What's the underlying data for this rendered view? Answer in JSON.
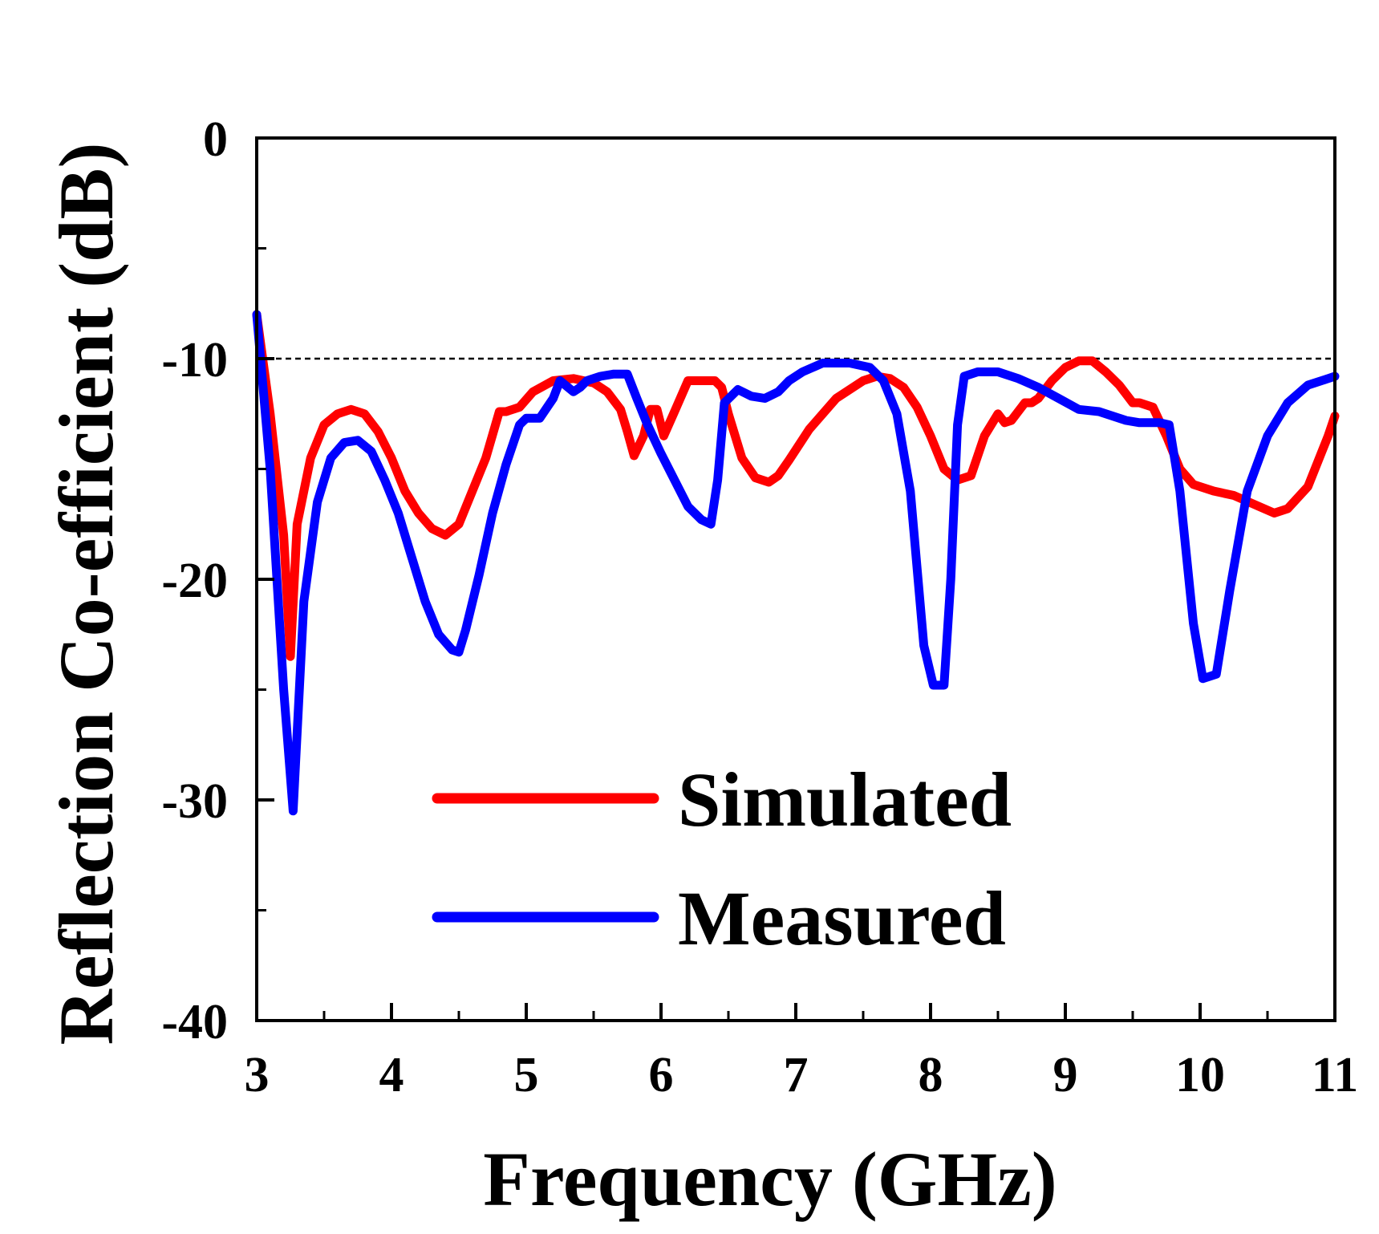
{
  "chart_data": {
    "type": "line",
    "title": "",
    "xlabel": "Frequency (GHz)",
    "ylabel": "Reflection Co-efficient (dB)",
    "xlim": [
      3,
      11
    ],
    "ylim": [
      -40,
      0
    ],
    "xticks": [
      "3",
      "4",
      "5",
      "6",
      "7",
      "8",
      "9",
      "10",
      "11"
    ],
    "yticks": [
      "0",
      "-10",
      "-20",
      "-30",
      "-40"
    ],
    "grid": false,
    "legend_position": "lower-center",
    "reference_line": {
      "y": -10,
      "style": "dashed",
      "color": "#000000"
    },
    "series": [
      {
        "name": "Simulated",
        "color": "#ff0000",
        "x": [
          3.0,
          3.1,
          3.2,
          3.25,
          3.3,
          3.4,
          3.5,
          3.6,
          3.7,
          3.8,
          3.9,
          4.0,
          4.1,
          4.2,
          4.3,
          4.4,
          4.5,
          4.6,
          4.7,
          4.8,
          4.85,
          4.95,
          5.05,
          5.2,
          5.35,
          5.5,
          5.6,
          5.7,
          5.75,
          5.8,
          5.87,
          5.92,
          5.97,
          6.02,
          6.1,
          6.2,
          6.3,
          6.4,
          6.45,
          6.5,
          6.6,
          6.7,
          6.8,
          6.87,
          6.95,
          7.1,
          7.3,
          7.5,
          7.6,
          7.7,
          7.8,
          7.9,
          8.0,
          8.1,
          8.2,
          8.3,
          8.4,
          8.5,
          8.55,
          8.6,
          8.7,
          8.75,
          8.8,
          8.9,
          9.0,
          9.1,
          9.2,
          9.3,
          9.4,
          9.5,
          9.55,
          9.65,
          9.75,
          9.85,
          9.95,
          10.1,
          10.25,
          10.4,
          10.55,
          10.65,
          10.8,
          10.95,
          11.0
        ],
        "y": [
          -8.0,
          -12.5,
          -18.0,
          -23.5,
          -17.5,
          -14.5,
          -13.0,
          -12.5,
          -12.3,
          -12.5,
          -13.3,
          -14.5,
          -16.0,
          -17.0,
          -17.7,
          -18.0,
          -17.5,
          -16.0,
          -14.5,
          -12.4,
          -12.4,
          -12.2,
          -11.5,
          -11.0,
          -10.9,
          -11.1,
          -11.5,
          -12.3,
          -13.3,
          -14.4,
          -13.5,
          -12.3,
          -12.3,
          -13.5,
          -12.4,
          -11.0,
          -11.0,
          -11.0,
          -11.3,
          -12.5,
          -14.5,
          -15.4,
          -15.6,
          -15.3,
          -14.6,
          -13.2,
          -11.8,
          -11.0,
          -10.8,
          -10.9,
          -11.3,
          -12.2,
          -13.5,
          -15.0,
          -15.5,
          -15.3,
          -13.5,
          -12.5,
          -12.9,
          -12.8,
          -12.0,
          -12.0,
          -11.8,
          -11.0,
          -10.4,
          -10.1,
          -10.1,
          -10.6,
          -11.2,
          -12.0,
          -12.0,
          -12.2,
          -13.5,
          -15.0,
          -15.7,
          -16.0,
          -16.2,
          -16.6,
          -17.0,
          -16.8,
          -15.8,
          -13.5,
          -12.6
        ]
      },
      {
        "name": "Measured",
        "color": "#0000ff",
        "x": [
          3.0,
          3.1,
          3.2,
          3.27,
          3.35,
          3.45,
          3.55,
          3.65,
          3.75,
          3.85,
          3.95,
          4.05,
          4.15,
          4.25,
          4.35,
          4.45,
          4.5,
          4.55,
          4.65,
          4.75,
          4.85,
          4.95,
          5.0,
          5.1,
          5.2,
          5.25,
          5.35,
          5.4,
          5.45,
          5.55,
          5.65,
          5.75,
          5.82,
          5.9,
          6.0,
          6.1,
          6.2,
          6.3,
          6.37,
          6.42,
          6.47,
          6.57,
          6.67,
          6.77,
          6.87,
          6.95,
          7.05,
          7.2,
          7.4,
          7.55,
          7.65,
          7.75,
          7.85,
          7.95,
          8.02,
          8.05,
          8.1,
          8.15,
          8.2,
          8.25,
          8.35,
          8.5,
          8.65,
          8.8,
          8.95,
          9.1,
          9.25,
          9.35,
          9.45,
          9.55,
          9.7,
          9.77,
          9.85,
          9.95,
          10.02,
          10.12,
          10.22,
          10.35,
          10.5,
          10.65,
          10.8,
          10.95,
          11.0
        ],
        "y": [
          -8.0,
          -15.0,
          -25.0,
          -30.5,
          -21.0,
          -16.5,
          -14.5,
          -13.8,
          -13.7,
          -14.2,
          -15.5,
          -17.0,
          -19.0,
          -21.0,
          -22.5,
          -23.2,
          -23.3,
          -22.3,
          -19.8,
          -17.0,
          -14.8,
          -13.0,
          -12.7,
          -12.7,
          -11.8,
          -11.0,
          -11.5,
          -11.3,
          -11.0,
          -10.8,
          -10.7,
          -10.7,
          -11.8,
          -13.0,
          -14.3,
          -15.5,
          -16.7,
          -17.3,
          -17.5,
          -15.5,
          -12.0,
          -11.4,
          -11.7,
          -11.8,
          -11.5,
          -11.0,
          -10.6,
          -10.2,
          -10.2,
          -10.4,
          -11.0,
          -12.5,
          -16.0,
          -23.0,
          -24.8,
          -24.8,
          -24.8,
          -20.0,
          -13.0,
          -10.8,
          -10.6,
          -10.6,
          -10.9,
          -11.3,
          -11.8,
          -12.3,
          -12.4,
          -12.6,
          -12.8,
          -12.9,
          -12.9,
          -13.0,
          -16.0,
          -22.0,
          -24.5,
          -24.3,
          -20.5,
          -16.0,
          -13.5,
          -12.0,
          -11.2,
          -10.9,
          -10.8
        ]
      }
    ]
  }
}
